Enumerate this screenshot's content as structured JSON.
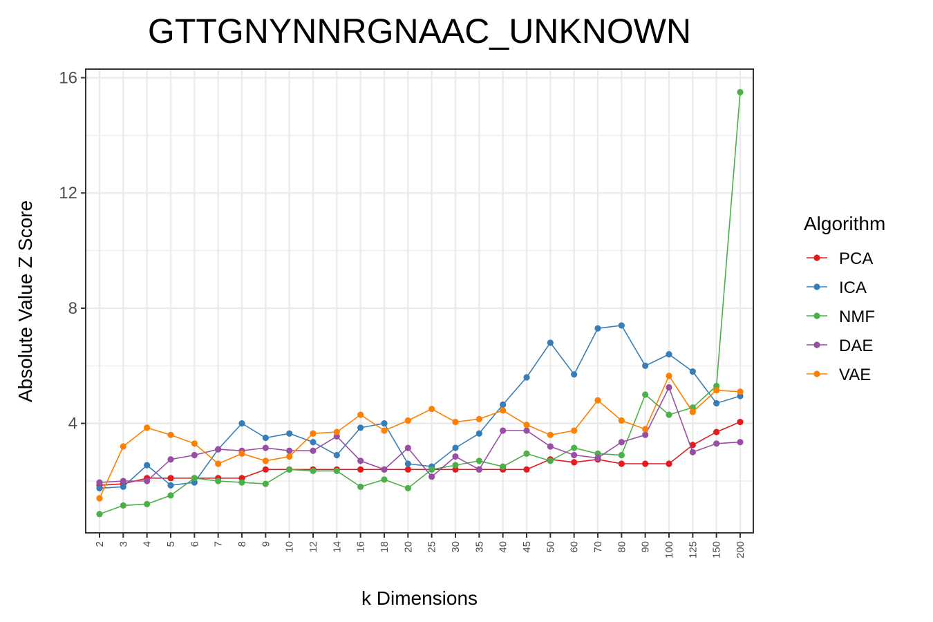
{
  "chart_data": {
    "type": "line",
    "title": "GTTGNYNNRGNAAC_UNKNOWN",
    "xlabel": "k Dimensions",
    "ylabel": "Absolute Value Z Score",
    "categories": [
      "2",
      "3",
      "4",
      "5",
      "6",
      "7",
      "8",
      "9",
      "10",
      "12",
      "14",
      "16",
      "18",
      "20",
      "25",
      "30",
      "35",
      "40",
      "45",
      "50",
      "60",
      "70",
      "80",
      "90",
      "100",
      "125",
      "150",
      "200"
    ],
    "ylim": [
      0.2,
      16.3
    ],
    "yticks": [
      4,
      8,
      12,
      16
    ],
    "grid": true,
    "legend": {
      "title": "Algorithm",
      "position": "right"
    },
    "series": [
      {
        "name": "PCA",
        "color": "#e41a1c",
        "values": [
          1.85,
          1.9,
          2.1,
          2.1,
          2.1,
          2.1,
          2.1,
          2.4,
          2.4,
          2.4,
          2.4,
          2.4,
          2.4,
          2.4,
          2.4,
          2.4,
          2.4,
          2.4,
          2.4,
          2.75,
          2.65,
          2.75,
          2.6,
          2.6,
          2.6,
          3.25,
          3.7,
          4.05
        ]
      },
      {
        "name": "ICA",
        "color": "#377eb8",
        "values": [
          1.75,
          1.8,
          2.55,
          1.85,
          1.95,
          3.1,
          4.0,
          3.5,
          3.65,
          3.35,
          2.9,
          3.85,
          4.0,
          2.6,
          2.5,
          3.15,
          3.65,
          4.65,
          5.6,
          6.8,
          5.7,
          7.3,
          7.4,
          6.0,
          6.4,
          5.8,
          4.7,
          4.95
        ]
      },
      {
        "name": "NMF",
        "color": "#4daf4a",
        "values": [
          0.85,
          1.15,
          1.2,
          1.5,
          2.1,
          2.0,
          1.95,
          1.9,
          2.4,
          2.35,
          2.35,
          1.8,
          2.05,
          1.75,
          2.4,
          2.55,
          2.7,
          2.5,
          2.95,
          2.7,
          3.15,
          2.95,
          2.9,
          5.0,
          4.3,
          4.55,
          5.3,
          15.5
        ]
      },
      {
        "name": "DAE",
        "color": "#984ea3",
        "values": [
          1.95,
          2.0,
          2.0,
          2.75,
          2.9,
          3.1,
          3.05,
          3.15,
          3.05,
          3.05,
          3.55,
          2.7,
          2.4,
          3.15,
          2.15,
          2.85,
          2.4,
          3.75,
          3.75,
          3.2,
          2.9,
          2.8,
          3.35,
          3.6,
          5.25,
          3.0,
          3.3,
          3.35
        ]
      },
      {
        "name": "VAE",
        "color": "#ff7f00",
        "values": [
          1.4,
          3.2,
          3.85,
          3.6,
          3.3,
          2.6,
          2.95,
          2.7,
          2.85,
          3.65,
          3.7,
          4.3,
          3.75,
          4.1,
          4.5,
          4.05,
          4.15,
          4.45,
          3.95,
          3.6,
          3.75,
          4.8,
          4.1,
          3.8,
          5.65,
          4.4,
          5.15,
          5.1
        ]
      }
    ]
  }
}
